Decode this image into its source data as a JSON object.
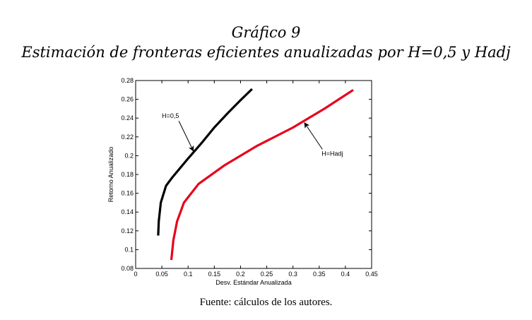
{
  "header": {
    "title": "Gráfico 9",
    "subtitle": "Estimación de fronteras eficientes anualizadas por H=0,5 y Hadj"
  },
  "footer": {
    "source": "Fuente: cálculos de los autores."
  },
  "chart_data": {
    "type": "line",
    "xlabel": "Desv. Estándar Anualizada",
    "ylabel": "Retorno Anualizado",
    "xlim": [
      0,
      0.45
    ],
    "ylim": [
      0.08,
      0.28
    ],
    "xticks": [
      "0",
      "0.05",
      "0.1",
      "0.15",
      "0.2",
      "0.25",
      "0.3",
      "0.35",
      "0.4",
      "0.45"
    ],
    "yticks": [
      "0.08",
      "0.1",
      "0.12",
      "0.14",
      "0.16",
      "0.18",
      "0.2",
      "0.22",
      "0.24",
      "0.26",
      "0.28"
    ],
    "grid": false,
    "series": [
      {
        "name": "H=0,5",
        "color": "#000000",
        "points": [
          [
            0.043,
            0.115
          ],
          [
            0.044,
            0.13
          ],
          [
            0.048,
            0.15
          ],
          [
            0.058,
            0.168
          ],
          [
            0.07,
            0.177
          ],
          [
            0.085,
            0.187
          ],
          [
            0.1,
            0.197
          ],
          [
            0.125,
            0.213
          ],
          [
            0.15,
            0.23
          ],
          [
            0.175,
            0.245
          ],
          [
            0.2,
            0.259
          ],
          [
            0.222,
            0.271
          ]
        ]
      },
      {
        "name": "H=Hadj",
        "color": "#e8001a",
        "points": [
          [
            0.068,
            0.089
          ],
          [
            0.072,
            0.11
          ],
          [
            0.079,
            0.13
          ],
          [
            0.092,
            0.15
          ],
          [
            0.12,
            0.17
          ],
          [
            0.17,
            0.19
          ],
          [
            0.23,
            0.21
          ],
          [
            0.3,
            0.23
          ],
          [
            0.36,
            0.25
          ],
          [
            0.415,
            0.27
          ]
        ]
      }
    ],
    "annotations": [
      {
        "text": "H=0,5",
        "arrow_to": [
          0.11,
          0.205
        ],
        "label_at": [
          0.05,
          0.24
        ]
      },
      {
        "text": "H=Hadj",
        "arrow_to": [
          0.322,
          0.235
        ],
        "label_at": [
          0.375,
          0.2
        ]
      }
    ]
  }
}
